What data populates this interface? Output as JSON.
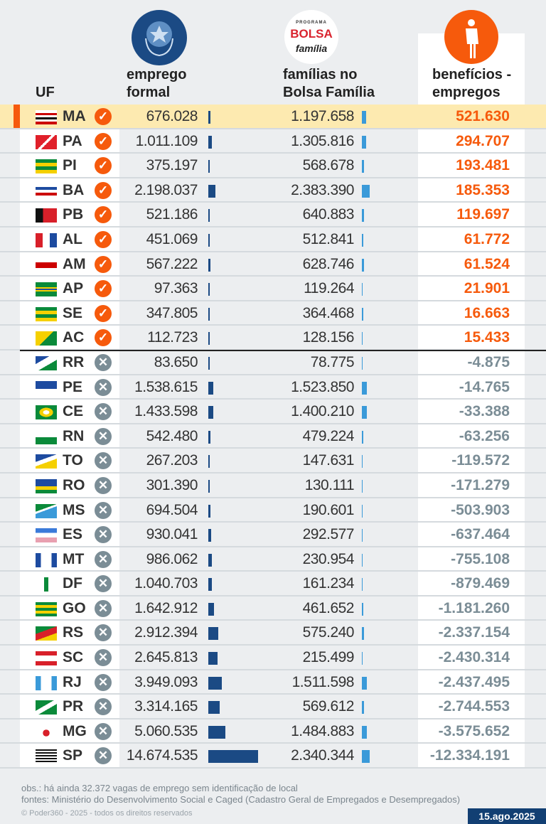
{
  "header": {
    "uf": "UF",
    "emprego": [
      "emprego",
      "formal"
    ],
    "bolsa": [
      "famílias no",
      "Bolsa Família"
    ],
    "beneficios": [
      "benefícios -",
      "empregos"
    ],
    "bolsa_logo": [
      "PROGRAMA",
      "BOLSA",
      "família"
    ]
  },
  "colors": {
    "positive": "#f65a0c",
    "negative": "#7b8d96",
    "emprego_bar": "#1b4a84",
    "bolsa_bar": "#3a9ad9",
    "highlight": "#fdeab0"
  },
  "chart_data": {
    "type": "table",
    "columns": [
      "UF",
      "emprego formal",
      "famílias no Bolsa Família",
      "benefícios - empregos"
    ],
    "rows": [
      {
        "uf": "MA",
        "emprego": "676.028",
        "bolsa": "1.197.658",
        "diff": "521.630",
        "e": 676028,
        "b": 1197658,
        "status": "check",
        "highlight": true
      },
      {
        "uf": "PA",
        "emprego": "1.011.109",
        "bolsa": "1.305.816",
        "diff": "294.707",
        "e": 1011109,
        "b": 1305816,
        "status": "check"
      },
      {
        "uf": "PI",
        "emprego": "375.197",
        "bolsa": "568.678",
        "diff": "193.481",
        "e": 375197,
        "b": 568678,
        "status": "check"
      },
      {
        "uf": "BA",
        "emprego": "2.198.037",
        "bolsa": "2.383.390",
        "diff": "185.353",
        "e": 2198037,
        "b": 2383390,
        "status": "check"
      },
      {
        "uf": "PB",
        "emprego": "521.186",
        "bolsa": "640.883",
        "diff": "119.697",
        "e": 521186,
        "b": 640883,
        "status": "check"
      },
      {
        "uf": "AL",
        "emprego": "451.069",
        "bolsa": "512.841",
        "diff": "61.772",
        "e": 451069,
        "b": 512841,
        "status": "check"
      },
      {
        "uf": "AM",
        "emprego": "567.222",
        "bolsa": "628.746",
        "diff": "61.524",
        "e": 567222,
        "b": 628746,
        "status": "check"
      },
      {
        "uf": "AP",
        "emprego": "97.363",
        "bolsa": "119.264",
        "diff": "21.901",
        "e": 97363,
        "b": 119264,
        "status": "check"
      },
      {
        "uf": "SE",
        "emprego": "347.805",
        "bolsa": "364.468",
        "diff": "16.663",
        "e": 347805,
        "b": 364468,
        "status": "check"
      },
      {
        "uf": "AC",
        "emprego": "112.723",
        "bolsa": "128.156",
        "diff": "15.433",
        "e": 112723,
        "b": 128156,
        "status": "check"
      },
      {
        "uf": "RR",
        "emprego": "83.650",
        "bolsa": "78.775",
        "diff": "-4.875",
        "e": 83650,
        "b": 78775,
        "status": "x"
      },
      {
        "uf": "PE",
        "emprego": "1.538.615",
        "bolsa": "1.523.850",
        "diff": "-14.765",
        "e": 1538615,
        "b": 1523850,
        "status": "x"
      },
      {
        "uf": "CE",
        "emprego": "1.433.598",
        "bolsa": "1.400.210",
        "diff": "-33.388",
        "e": 1433598,
        "b": 1400210,
        "status": "x"
      },
      {
        "uf": "RN",
        "emprego": "542.480",
        "bolsa": "479.224",
        "diff": "-63.256",
        "e": 542480,
        "b": 479224,
        "status": "x"
      },
      {
        "uf": "TO",
        "emprego": "267.203",
        "bolsa": "147.631",
        "diff": "-119.572",
        "e": 267203,
        "b": 147631,
        "status": "x"
      },
      {
        "uf": "RO",
        "emprego": "301.390",
        "bolsa": "130.111",
        "diff": "-171.279",
        "e": 301390,
        "b": 130111,
        "status": "x"
      },
      {
        "uf": "MS",
        "emprego": "694.504",
        "bolsa": "190.601",
        "diff": "-503.903",
        "e": 694504,
        "b": 190601,
        "status": "x"
      },
      {
        "uf": "ES",
        "emprego": "930.041",
        "bolsa": "292.577",
        "diff": "-637.464",
        "e": 930041,
        "b": 292577,
        "status": "x"
      },
      {
        "uf": "MT",
        "emprego": "986.062",
        "bolsa": "230.954",
        "diff": "-755.108",
        "e": 986062,
        "b": 230954,
        "status": "x"
      },
      {
        "uf": "DF",
        "emprego": "1.040.703",
        "bolsa": "161.234",
        "diff": "-879.469",
        "e": 1040703,
        "b": 161234,
        "status": "x"
      },
      {
        "uf": "GO",
        "emprego": "1.642.912",
        "bolsa": "461.652",
        "diff": "-1.181.260",
        "e": 1642912,
        "b": 461652,
        "status": "x"
      },
      {
        "uf": "RS",
        "emprego": "2.912.394",
        "bolsa": "575.240",
        "diff": "-2.337.154",
        "e": 2912394,
        "b": 575240,
        "status": "x"
      },
      {
        "uf": "SC",
        "emprego": "2.645.813",
        "bolsa": "215.499",
        "diff": "-2.430.314",
        "e": 2645813,
        "b": 215499,
        "status": "x"
      },
      {
        "uf": "RJ",
        "emprego": "3.949.093",
        "bolsa": "1.511.598",
        "diff": "-2.437.495",
        "e": 3949093,
        "b": 1511598,
        "status": "x"
      },
      {
        "uf": "PR",
        "emprego": "3.314.165",
        "bolsa": "569.612",
        "diff": "-2.744.553",
        "e": 3314165,
        "b": 569612,
        "status": "x"
      },
      {
        "uf": "MG",
        "emprego": "5.060.535",
        "bolsa": "1.484.883",
        "diff": "-3.575.652",
        "e": 5060535,
        "b": 1484883,
        "status": "x"
      },
      {
        "uf": "SP",
        "emprego": "14.674.535",
        "bolsa": "2.340.344",
        "diff": "-12.334.191",
        "e": 14674535,
        "b": 2340344,
        "status": "x"
      }
    ]
  },
  "footer": {
    "obs": "obs.: há ainda 32.372 vagas de emprego sem identificação de local",
    "fontes": "fontes: Ministério do Desenvolvimento Social e Caged (Cadastro Geral de Empregados e Desempregados)",
    "copyright": "© Poder360 - 2025 - todos os direitos reservados",
    "date": "15.ago.2025"
  }
}
